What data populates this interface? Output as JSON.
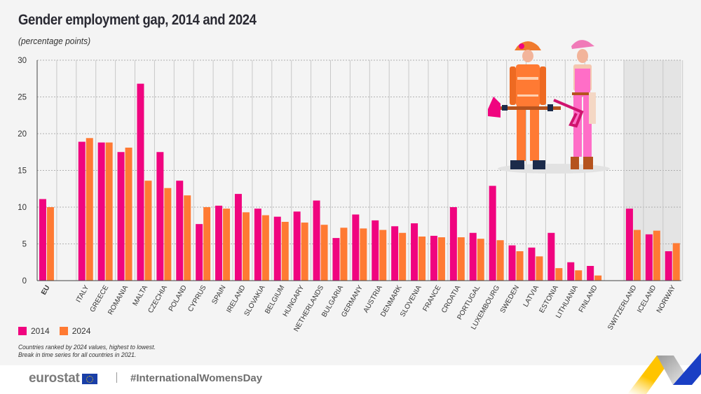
{
  "title": "Gender employment gap, 2014 and 2024",
  "subtitle": "(percentage points)",
  "legend": [
    {
      "label": "2014",
      "color": "#f0047f"
    },
    {
      "label": "2024",
      "color": "#ff7a33"
    }
  ],
  "notes": [
    "Countries ranked by 2024 values, highest to lowest.",
    "Break in time series for all countries in 2021."
  ],
  "footer": {
    "brand": "eurostat",
    "hashtag": "#InternationalWomensDay"
  },
  "colors": {
    "series_2014": "#f0047f",
    "series_2024": "#ff7a33",
    "background": "#f4f4f4",
    "efta_band": "#e4e4e4"
  },
  "chart_data": {
    "type": "bar",
    "title": "Gender employment gap, 2014 and 2024",
    "ylabel": "percentage points",
    "xlabel": "",
    "ylim": [
      0,
      30
    ],
    "yticks": [
      0,
      5,
      10,
      15,
      20,
      25,
      30
    ],
    "grid": true,
    "legend_position": "bottom-left",
    "categories": [
      "EU",
      "ITALY",
      "GREECE",
      "ROMANIA",
      "MALTA",
      "CZECHIA",
      "POLAND",
      "CYPRUS",
      "SPAIN",
      "IRELAND",
      "SLOVAKIA",
      "BELGIUM",
      "HUNGARY",
      "NETHERLANDS",
      "BULGARIA",
      "GERMANY",
      "AUSTRIA",
      "DENMARK",
      "SLOVENIA",
      "FRANCE",
      "CROATIA",
      "PORTUGAL",
      "LUXEMBOURG",
      "SWEDEN",
      "LATVIA",
      "ESTONIA",
      "LITHUANIA",
      "FINLAND",
      "SWITZERLAND",
      "ICELAND",
      "NORWAY"
    ],
    "groups": [
      "eu",
      "member",
      "member",
      "member",
      "member",
      "member",
      "member",
      "member",
      "member",
      "member",
      "member",
      "member",
      "member",
      "member",
      "member",
      "member",
      "member",
      "member",
      "member",
      "member",
      "member",
      "member",
      "member",
      "member",
      "member",
      "member",
      "member",
      "member",
      "efta",
      "efta",
      "efta"
    ],
    "series": [
      {
        "name": "2014",
        "values": [
          11.1,
          18.9,
          18.8,
          17.5,
          26.8,
          17.5,
          13.6,
          7.7,
          10.2,
          11.8,
          9.8,
          8.7,
          9.4,
          10.9,
          5.8,
          9.0,
          8.2,
          7.4,
          7.8,
          6.1,
          10.0,
          6.5,
          12.9,
          4.8,
          4.5,
          6.5,
          2.5,
          2.0,
          9.8,
          6.3,
          4.0
        ]
      },
      {
        "name": "2024",
        "values": [
          10.0,
          19.4,
          18.8,
          18.1,
          13.6,
          12.6,
          11.6,
          10.0,
          9.8,
          9.3,
          8.9,
          8.0,
          7.9,
          7.6,
          7.2,
          7.1,
          6.9,
          6.5,
          6.0,
          5.9,
          5.9,
          5.7,
          5.5,
          4.0,
          3.3,
          1.7,
          1.4,
          0.7,
          6.9,
          6.8,
          5.1
        ]
      }
    ]
  }
}
